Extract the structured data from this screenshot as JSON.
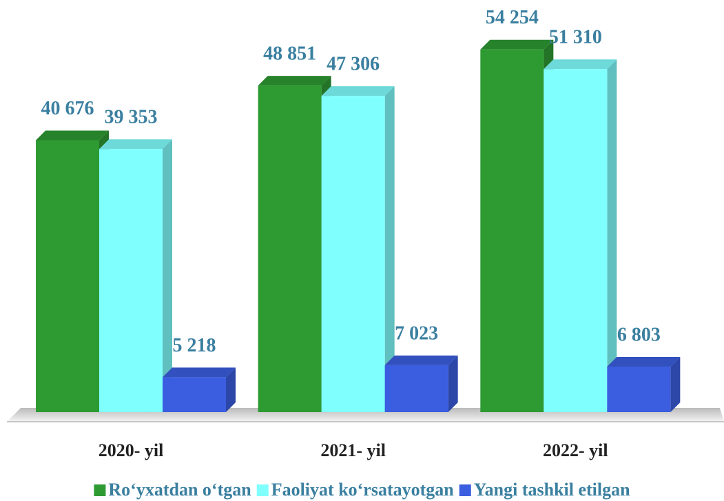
{
  "chart_data": {
    "type": "bar",
    "categories": [
      "2020- yil",
      "2021- yil",
      "2022- yil"
    ],
    "series": [
      {
        "name": "Ro‘yxatdan o‘tgan",
        "color": "#2e9a32",
        "values": [
          40676,
          48851,
          54254
        ],
        "value_labels": [
          "40 676",
          "48 851",
          "54 254"
        ]
      },
      {
        "name": "Faoliyat ko‘rsatayotgan",
        "color": "#80ffff",
        "values": [
          39353,
          47306,
          51310
        ],
        "value_labels": [
          "39 353",
          "47 306",
          "51 310"
        ]
      },
      {
        "name": "Yangi tashkil etilgan",
        "color": "#3b5ee0",
        "values": [
          5218,
          7023,
          6803
        ],
        "value_labels": [
          "5 218",
          "7 023",
          "6 803"
        ]
      }
    ],
    "ylim": [
      0,
      60000
    ]
  }
}
